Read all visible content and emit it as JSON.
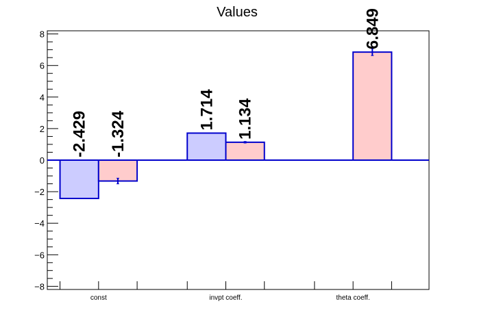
{
  "chart_data": {
    "type": "bar",
    "title": "Values",
    "categories": [
      "const",
      "invpt coeff.",
      "theta coeff."
    ],
    "series": [
      {
        "values": [
          -2.429,
          1.714,
          null
        ],
        "labels": [
          "-2.429",
          "1.714",
          ""
        ],
        "errors": [
          0,
          0,
          0
        ],
        "fill": "#ccccff",
        "stroke": "#0000cc"
      },
      {
        "values": [
          -1.324,
          1.134,
          6.849
        ],
        "labels": [
          "-1.324",
          "1.134",
          "6.849"
        ],
        "errors": [
          0.18,
          0.05,
          0.22
        ],
        "fill": "#ffcccc",
        "stroke": "#0000cc"
      }
    ],
    "ylim": [
      -8.2,
      8.2
    ],
    "yticks": [
      -8,
      -6,
      -4,
      -2,
      0,
      2,
      4,
      6,
      8
    ],
    "ytick_labels": [
      "−8",
      "−6",
      "−4",
      "−2",
      "0",
      "2",
      "4",
      "6",
      "8"
    ],
    "xlabel": "",
    "ylabel": "",
    "grid": false,
    "legend": "none",
    "zero_line_color": "#0000cc"
  }
}
